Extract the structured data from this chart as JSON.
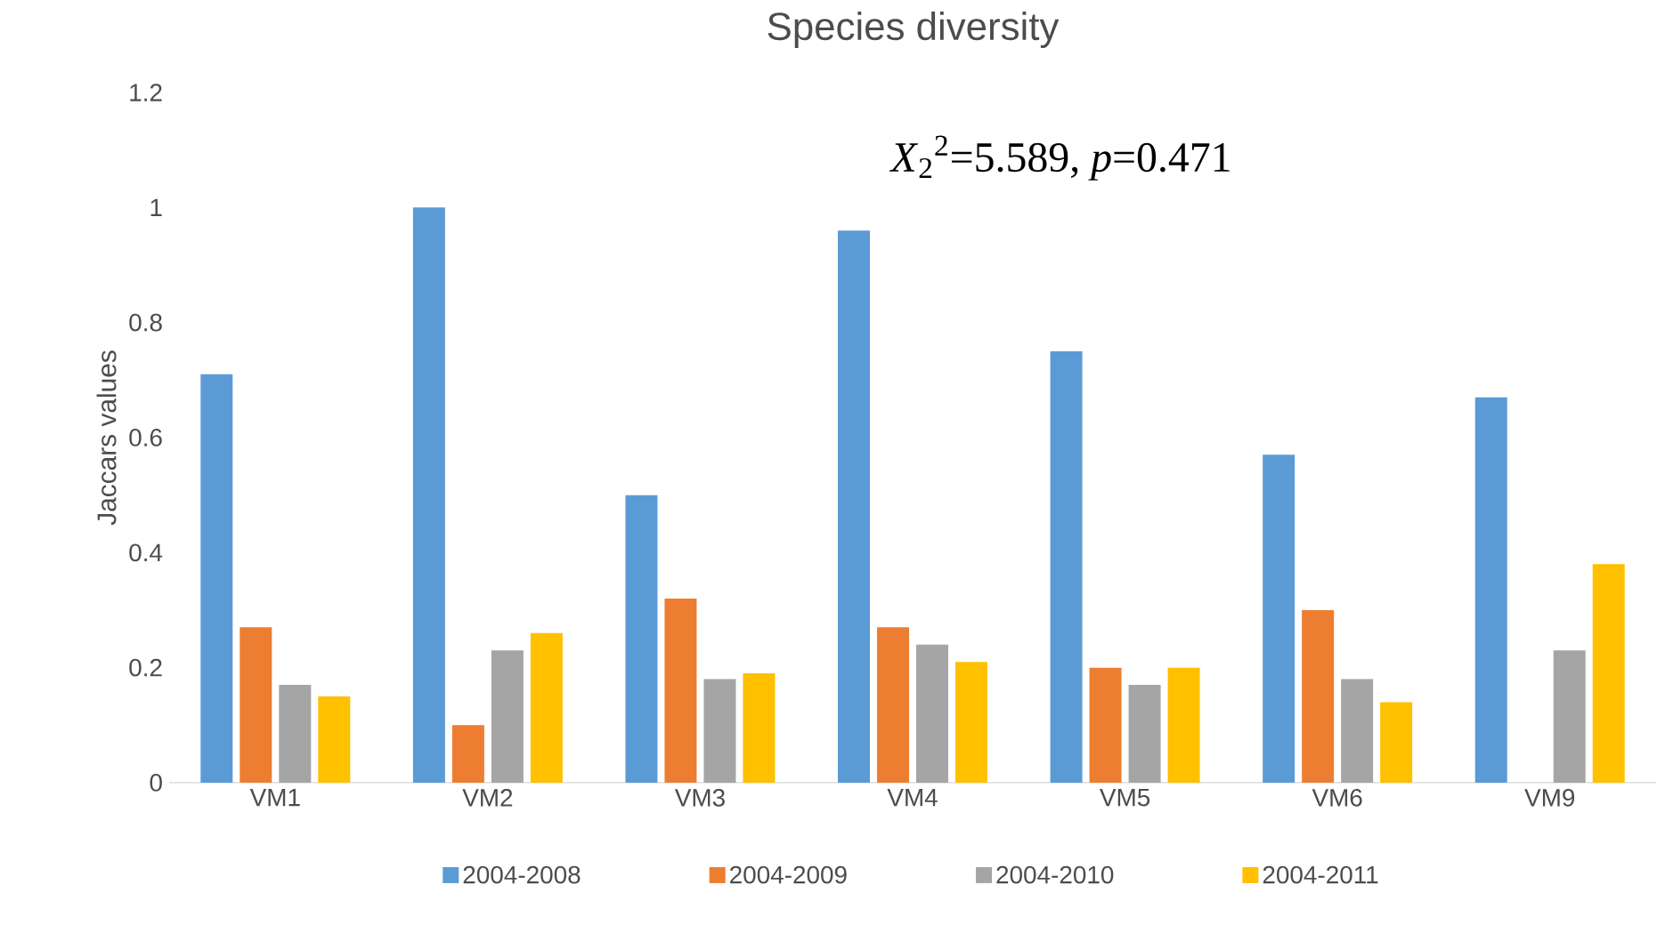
{
  "chart_data": {
    "type": "bar",
    "title": "Species diversity",
    "ylabel": "Jaccars values",
    "annotations": [
      "*X*$_{2}$$^{2}$=5.589, *p*=0.471"
    ],
    "categories": [
      "VM1",
      "VM2",
      "VM3",
      "VM4",
      "VM5",
      "VM6",
      "VM9"
    ],
    "series": [
      {
        "name": "2004-2008",
        "color": "#5b9bd5",
        "values": [
          0.71,
          1.0,
          0.5,
          0.96,
          0.75,
          0.57,
          0.67
        ]
      },
      {
        "name": "2004-2009",
        "color": "#ed7d31",
        "values": [
          0.27,
          0.1,
          0.32,
          0.27,
          0.2,
          0.3,
          null
        ]
      },
      {
        "name": "2004-2010",
        "color": "#a5a5a5",
        "values": [
          0.17,
          0.23,
          0.18,
          0.24,
          0.17,
          0.18,
          0.23
        ]
      },
      {
        "name": "2004-2011",
        "color": "#ffc000",
        "values": [
          0.15,
          0.26,
          0.19,
          0.21,
          0.2,
          0.14,
          0.38
        ]
      }
    ],
    "ylim": [
      0,
      1.2
    ],
    "yticks": [
      0,
      0.2,
      0.4,
      0.6,
      0.8,
      1,
      1.2
    ],
    "grid": false,
    "legend": "bottom"
  }
}
